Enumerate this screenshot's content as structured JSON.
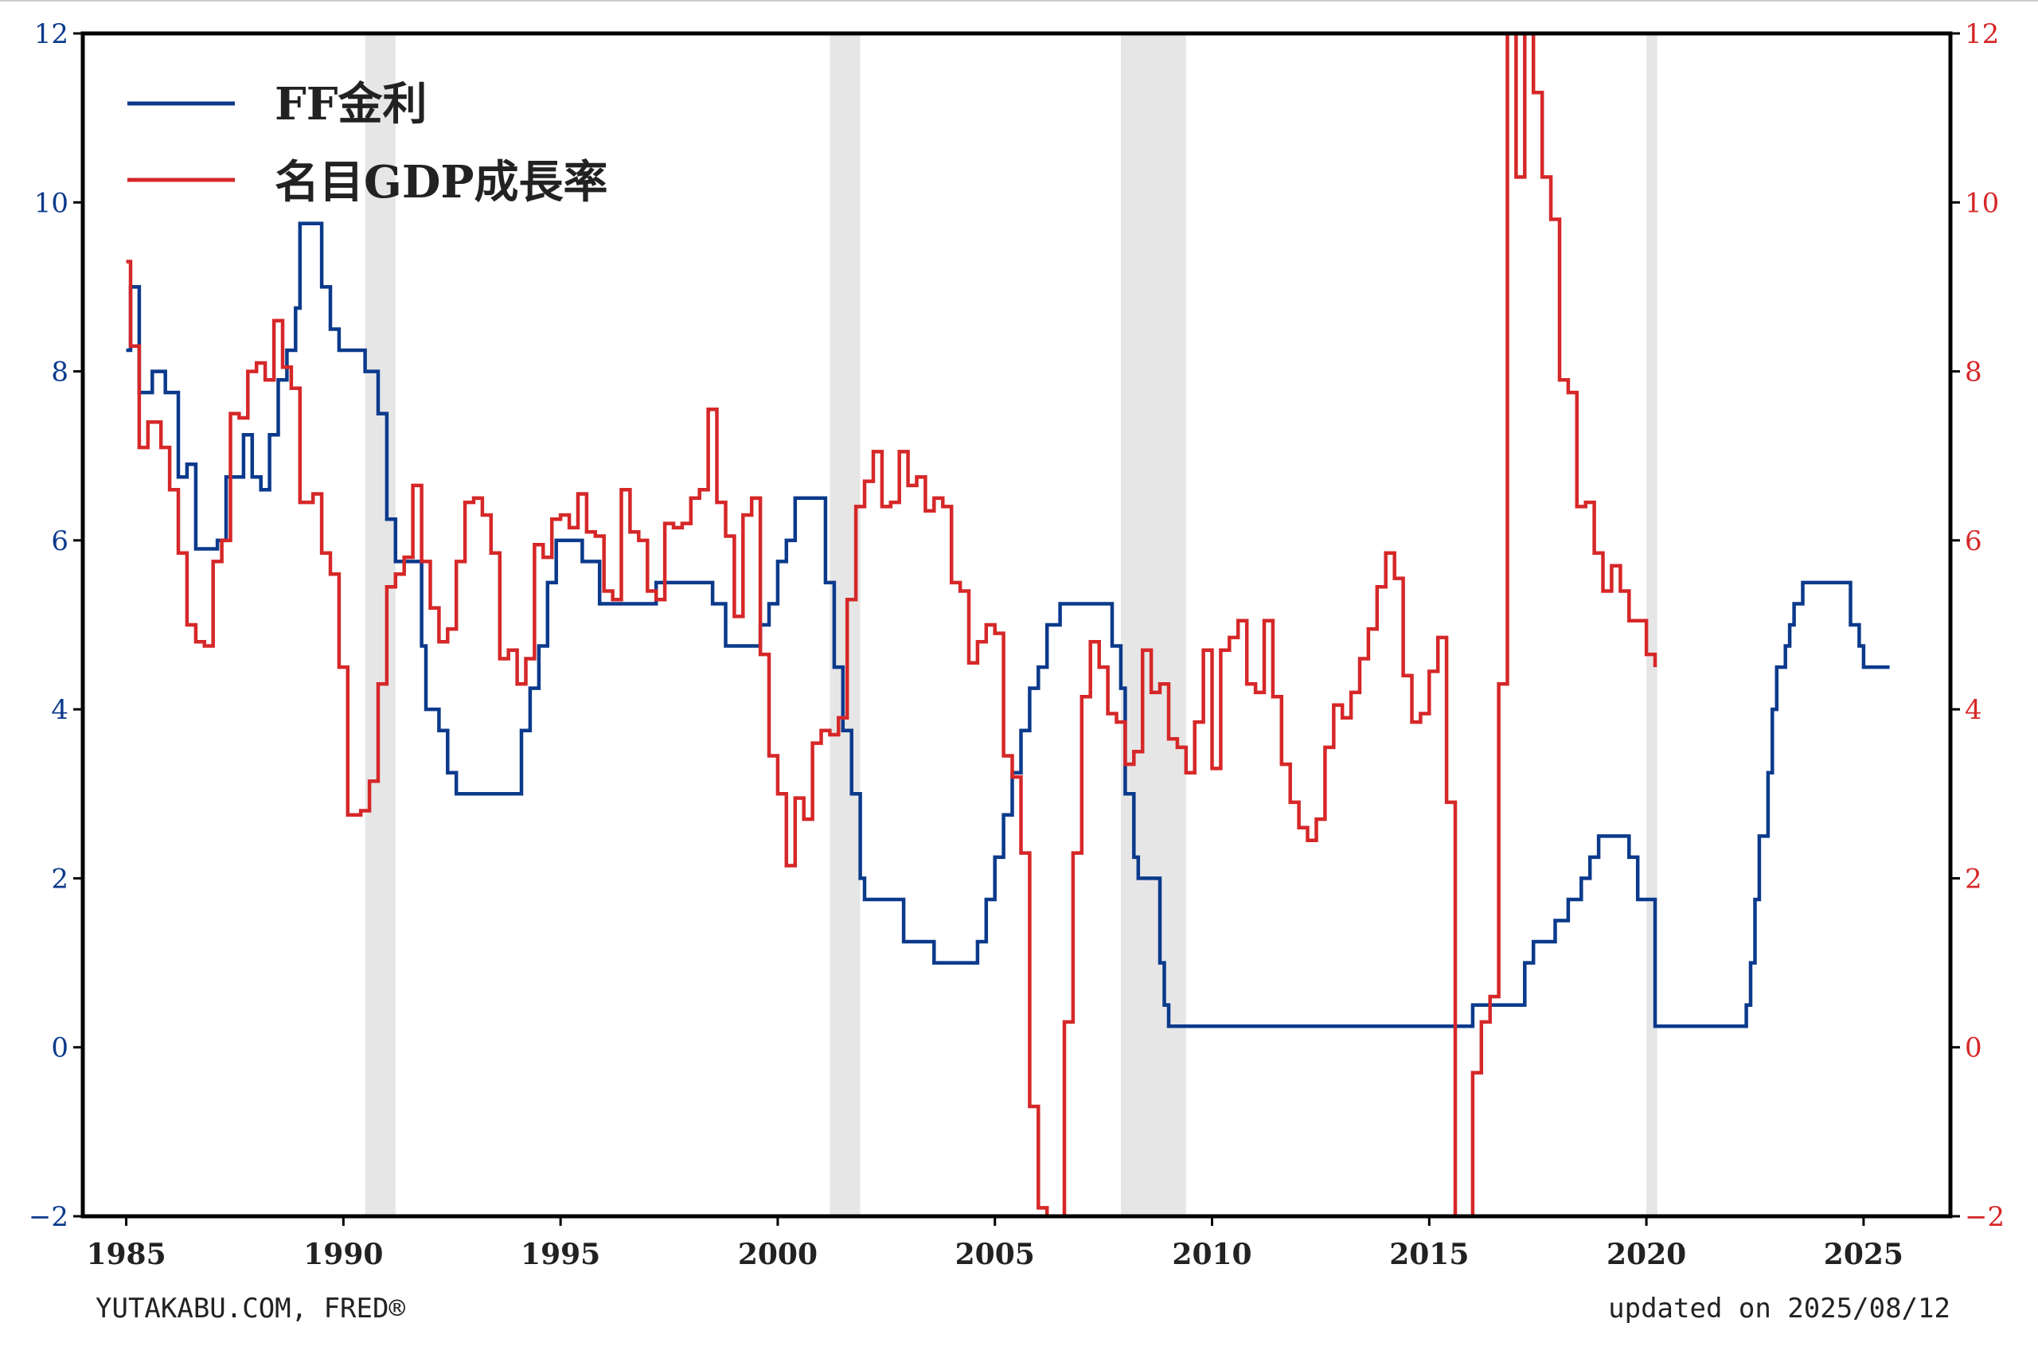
{
  "chart_data": {
    "type": "line",
    "x_range": [
      1984.0,
      2027.0
    ],
    "ylim_left": [
      -2,
      12
    ],
    "ylim_right": [
      -2,
      12
    ],
    "x_ticks": [
      "1985",
      "1990",
      "1995",
      "2000",
      "2005",
      "2010",
      "2015",
      "2020",
      "2025"
    ],
    "y_ticks_left": [
      "−2",
      "0",
      "2",
      "4",
      "6",
      "8",
      "10",
      "12"
    ],
    "y_ticks_right": [
      "−2",
      "0",
      "2",
      "4",
      "6",
      "8",
      "10",
      "12"
    ],
    "grid": false,
    "legend_position": "top-left",
    "recession_bands": [
      [
        1990.5,
        1991.2
      ],
      [
        2001.2,
        2001.9
      ],
      [
        2007.9,
        2009.4
      ],
      [
        2020.0,
        2020.25
      ]
    ],
    "colors": {
      "ff_rate": "#0b3a8c",
      "gdp_growth": "#d62728",
      "recession": "#e6e6e6"
    },
    "series": [
      {
        "name": "FF金利",
        "axis": "left",
        "points": [
          [
            1985.0,
            8.25
          ],
          [
            1985.1,
            9.0
          ],
          [
            1985.3,
            7.75
          ],
          [
            1985.6,
            8.0
          ],
          [
            1985.9,
            7.75
          ],
          [
            1986.2,
            6.75
          ],
          [
            1986.4,
            6.9
          ],
          [
            1986.6,
            5.9
          ],
          [
            1986.9,
            5.9
          ],
          [
            1987.1,
            6.0
          ],
          [
            1987.3,
            6.75
          ],
          [
            1987.6,
            6.75
          ],
          [
            1987.7,
            7.25
          ],
          [
            1987.9,
            6.75
          ],
          [
            1988.1,
            6.6
          ],
          [
            1988.3,
            7.25
          ],
          [
            1988.5,
            7.9
          ],
          [
            1988.7,
            8.25
          ],
          [
            1988.9,
            8.75
          ],
          [
            1989.0,
            9.75
          ],
          [
            1989.2,
            9.75
          ],
          [
            1989.5,
            9.0
          ],
          [
            1989.7,
            8.5
          ],
          [
            1989.9,
            8.25
          ],
          [
            1990.3,
            8.25
          ],
          [
            1990.5,
            8.0
          ],
          [
            1990.8,
            7.5
          ],
          [
            1991.0,
            6.25
          ],
          [
            1991.2,
            5.75
          ],
          [
            1991.5,
            5.75
          ],
          [
            1991.8,
            4.75
          ],
          [
            1991.9,
            4.0
          ],
          [
            1992.2,
            3.75
          ],
          [
            1992.4,
            3.25
          ],
          [
            1992.6,
            3.0
          ],
          [
            1993.2,
            3.0
          ],
          [
            1993.9,
            3.0
          ],
          [
            1994.1,
            3.75
          ],
          [
            1994.3,
            4.25
          ],
          [
            1994.5,
            4.75
          ],
          [
            1994.7,
            5.5
          ],
          [
            1994.9,
            6.0
          ],
          [
            1995.2,
            6.0
          ],
          [
            1995.5,
            5.75
          ],
          [
            1995.9,
            5.25
          ],
          [
            1996.5,
            5.25
          ],
          [
            1997.2,
            5.5
          ],
          [
            1997.8,
            5.5
          ],
          [
            1998.2,
            5.5
          ],
          [
            1998.5,
            5.25
          ],
          [
            1998.8,
            4.75
          ],
          [
            1999.4,
            4.75
          ],
          [
            1999.6,
            5.0
          ],
          [
            1999.8,
            5.25
          ],
          [
            2000.0,
            5.75
          ],
          [
            2000.2,
            6.0
          ],
          [
            2000.4,
            6.5
          ],
          [
            2000.9,
            6.5
          ],
          [
            2001.1,
            5.5
          ],
          [
            2001.3,
            4.5
          ],
          [
            2001.5,
            3.75
          ],
          [
            2001.7,
            3.0
          ],
          [
            2001.9,
            2.0
          ],
          [
            2002.0,
            1.75
          ],
          [
            2002.8,
            1.75
          ],
          [
            2002.9,
            1.25
          ],
          [
            2003.5,
            1.25
          ],
          [
            2003.6,
            1.0
          ],
          [
            2004.4,
            1.0
          ],
          [
            2004.6,
            1.25
          ],
          [
            2004.8,
            1.75
          ],
          [
            2005.0,
            2.25
          ],
          [
            2005.2,
            2.75
          ],
          [
            2005.4,
            3.25
          ],
          [
            2005.6,
            3.75
          ],
          [
            2005.8,
            4.25
          ],
          [
            2006.0,
            4.5
          ],
          [
            2006.2,
            5.0
          ],
          [
            2006.5,
            5.25
          ],
          [
            2007.5,
            5.25
          ],
          [
            2007.7,
            4.75
          ],
          [
            2007.9,
            4.25
          ],
          [
            2008.0,
            3.0
          ],
          [
            2008.2,
            2.25
          ],
          [
            2008.3,
            2.0
          ],
          [
            2008.7,
            2.0
          ],
          [
            2008.8,
            1.0
          ],
          [
            2008.9,
            0.5
          ],
          [
            2009.0,
            0.25
          ],
          [
            2015.9,
            0.25
          ],
          [
            2016.0,
            0.5
          ],
          [
            2016.9,
            0.5
          ],
          [
            2017.2,
            1.0
          ],
          [
            2017.4,
            1.25
          ],
          [
            2017.9,
            1.5
          ],
          [
            2018.2,
            1.75
          ],
          [
            2018.5,
            2.0
          ],
          [
            2018.7,
            2.25
          ],
          [
            2018.9,
            2.5
          ],
          [
            2019.4,
            2.5
          ],
          [
            2019.6,
            2.25
          ],
          [
            2019.8,
            1.75
          ],
          [
            2020.1,
            1.75
          ],
          [
            2020.2,
            0.25
          ],
          [
            2022.1,
            0.25
          ],
          [
            2022.3,
            0.5
          ],
          [
            2022.4,
            1.0
          ],
          [
            2022.5,
            1.75
          ],
          [
            2022.6,
            2.5
          ],
          [
            2022.8,
            3.25
          ],
          [
            2022.9,
            4.0
          ],
          [
            2023.0,
            4.5
          ],
          [
            2023.2,
            4.75
          ],
          [
            2023.3,
            5.0
          ],
          [
            2023.4,
            5.25
          ],
          [
            2023.6,
            5.5
          ],
          [
            2024.6,
            5.5
          ],
          [
            2024.7,
            5.0
          ],
          [
            2024.9,
            4.75
          ],
          [
            2025.0,
            4.5
          ],
          [
            2025.6,
            4.5
          ]
        ]
      },
      {
        "name": "名目GDP成長率",
        "axis": "right",
        "points": [
          [
            1985.0,
            9.3
          ],
          [
            1985.1,
            8.3
          ],
          [
            1985.3,
            7.1
          ],
          [
            1985.5,
            7.4
          ],
          [
            1985.8,
            7.1
          ],
          [
            1986.0,
            6.6
          ],
          [
            1986.2,
            5.85
          ],
          [
            1986.4,
            5.0
          ],
          [
            1986.6,
            4.8
          ],
          [
            1986.8,
            4.75
          ],
          [
            1987.0,
            5.75
          ],
          [
            1987.2,
            6.0
          ],
          [
            1987.4,
            7.5
          ],
          [
            1987.6,
            7.45
          ],
          [
            1987.8,
            8.0
          ],
          [
            1988.0,
            8.1
          ],
          [
            1988.2,
            7.9
          ],
          [
            1988.4,
            8.6
          ],
          [
            1988.6,
            8.05
          ],
          [
            1988.8,
            7.8
          ],
          [
            1989.0,
            6.45
          ],
          [
            1989.3,
            6.55
          ],
          [
            1989.5,
            5.85
          ],
          [
            1989.7,
            5.6
          ],
          [
            1989.9,
            4.5
          ],
          [
            1990.1,
            2.75
          ],
          [
            1990.4,
            2.8
          ],
          [
            1990.6,
            3.15
          ],
          [
            1990.8,
            4.3
          ],
          [
            1991.0,
            5.45
          ],
          [
            1991.2,
            5.6
          ],
          [
            1991.4,
            5.8
          ],
          [
            1991.6,
            6.65
          ],
          [
            1991.8,
            5.75
          ],
          [
            1992.0,
            5.2
          ],
          [
            1992.2,
            4.8
          ],
          [
            1992.4,
            4.95
          ],
          [
            1992.6,
            5.75
          ],
          [
            1992.8,
            6.45
          ],
          [
            1993.0,
            6.5
          ],
          [
            1993.2,
            6.3
          ],
          [
            1993.4,
            5.85
          ],
          [
            1993.6,
            4.6
          ],
          [
            1993.8,
            4.7
          ],
          [
            1994.0,
            4.3
          ],
          [
            1994.2,
            4.6
          ],
          [
            1994.4,
            5.95
          ],
          [
            1994.6,
            5.8
          ],
          [
            1994.8,
            6.25
          ],
          [
            1995.0,
            6.3
          ],
          [
            1995.2,
            6.15
          ],
          [
            1995.4,
            6.55
          ],
          [
            1995.6,
            6.1
          ],
          [
            1995.8,
            6.05
          ],
          [
            1996.0,
            5.4
          ],
          [
            1996.2,
            5.3
          ],
          [
            1996.4,
            6.6
          ],
          [
            1996.6,
            6.1
          ],
          [
            1996.8,
            6.0
          ],
          [
            1997.0,
            5.4
          ],
          [
            1997.2,
            5.3
          ],
          [
            1997.4,
            6.2
          ],
          [
            1997.6,
            6.15
          ],
          [
            1997.8,
            6.2
          ],
          [
            1998.0,
            6.5
          ],
          [
            1998.2,
            6.6
          ],
          [
            1998.4,
            7.55
          ],
          [
            1998.6,
            6.45
          ],
          [
            1998.8,
            6.05
          ],
          [
            1999.0,
            5.1
          ],
          [
            1999.2,
            6.3
          ],
          [
            1999.4,
            6.5
          ],
          [
            1999.6,
            4.65
          ],
          [
            1999.8,
            3.45
          ],
          [
            2000.0,
            3.0
          ],
          [
            2000.2,
            2.15
          ],
          [
            2000.4,
            2.95
          ],
          [
            2000.6,
            2.7
          ],
          [
            2000.8,
            3.6
          ],
          [
            2001.0,
            3.75
          ],
          [
            2001.2,
            3.7
          ],
          [
            2001.4,
            3.9
          ],
          [
            2001.6,
            5.3
          ],
          [
            2001.8,
            6.4
          ],
          [
            2002.0,
            6.7
          ],
          [
            2002.2,
            7.05
          ],
          [
            2002.4,
            6.4
          ],
          [
            2002.6,
            6.45
          ],
          [
            2002.8,
            7.05
          ],
          [
            2003.0,
            6.65
          ],
          [
            2003.2,
            6.75
          ],
          [
            2003.4,
            6.35
          ],
          [
            2003.6,
            6.5
          ],
          [
            2003.8,
            6.4
          ],
          [
            2004.0,
            5.5
          ],
          [
            2004.2,
            5.4
          ],
          [
            2004.4,
            4.55
          ],
          [
            2004.6,
            4.8
          ],
          [
            2004.8,
            5.0
          ],
          [
            2005.0,
            4.9
          ],
          [
            2005.2,
            3.45
          ],
          [
            2005.4,
            3.2
          ],
          [
            2005.6,
            2.3
          ],
          [
            2005.8,
            -0.7
          ],
          [
            2006.0,
            -1.9
          ],
          [
            2006.2,
            -2.0
          ],
          [
            2006.4,
            -2.0
          ],
          [
            2006.6,
            0.3
          ],
          [
            2006.8,
            2.3
          ],
          [
            2007.0,
            4.15
          ],
          [
            2007.2,
            4.8
          ],
          [
            2007.4,
            4.5
          ],
          [
            2007.6,
            3.95
          ],
          [
            2007.8,
            3.85
          ],
          [
            2008.0,
            3.35
          ],
          [
            2008.2,
            3.5
          ],
          [
            2008.4,
            4.7
          ],
          [
            2008.6,
            4.2
          ],
          [
            2008.8,
            4.3
          ],
          [
            2009.0,
            3.65
          ],
          [
            2009.2,
            3.55
          ],
          [
            2009.4,
            3.25
          ],
          [
            2009.6,
            3.85
          ],
          [
            2009.8,
            4.7
          ],
          [
            2010.0,
            3.3
          ],
          [
            2010.2,
            4.7
          ],
          [
            2010.4,
            4.85
          ],
          [
            2010.6,
            5.05
          ],
          [
            2010.8,
            4.3
          ],
          [
            2011.0,
            4.2
          ],
          [
            2011.2,
            5.05
          ],
          [
            2011.4,
            4.15
          ],
          [
            2011.6,
            3.35
          ],
          [
            2011.8,
            2.9
          ],
          [
            2012.0,
            2.6
          ],
          [
            2012.2,
            2.45
          ],
          [
            2012.4,
            2.7
          ],
          [
            2012.6,
            3.55
          ],
          [
            2012.8,
            4.05
          ],
          [
            2013.0,
            3.9
          ],
          [
            2013.2,
            4.2
          ],
          [
            2013.4,
            4.6
          ],
          [
            2013.6,
            4.95
          ],
          [
            2013.8,
            5.45
          ],
          [
            2014.0,
            5.85
          ],
          [
            2014.2,
            5.55
          ],
          [
            2014.4,
            4.4
          ],
          [
            2014.6,
            3.85
          ],
          [
            2014.8,
            3.95
          ],
          [
            2015.0,
            4.45
          ],
          [
            2015.2,
            4.85
          ],
          [
            2015.4,
            2.9
          ],
          [
            2015.6,
            -2.0
          ],
          [
            2015.8,
            -2.0
          ],
          [
            2016.0,
            -0.3
          ],
          [
            2016.2,
            0.3
          ],
          [
            2016.4,
            0.6
          ],
          [
            2016.6,
            4.3
          ],
          [
            2016.8,
            12.0
          ],
          [
            2017.0,
            10.3
          ],
          [
            2017.2,
            12.0
          ],
          [
            2017.4,
            11.3
          ],
          [
            2017.6,
            10.3
          ],
          [
            2017.8,
            9.8
          ],
          [
            2018.0,
            7.9
          ],
          [
            2018.2,
            7.75
          ],
          [
            2018.4,
            6.4
          ],
          [
            2018.6,
            6.45
          ],
          [
            2018.8,
            5.85
          ],
          [
            2019.0,
            5.4
          ],
          [
            2019.2,
            5.7
          ],
          [
            2019.4,
            5.4
          ],
          [
            2019.6,
            5.05
          ],
          [
            2019.8,
            5.05
          ],
          [
            2020.0,
            4.65
          ],
          [
            2020.2,
            4.5
          ]
        ]
      }
    ],
    "legend": [
      {
        "label": "FF金利",
        "series": 0
      },
      {
        "label": "名目GDP成長率",
        "series": 1
      }
    ]
  },
  "footer": {
    "source": "YUTAKABU.COM, FRED®",
    "updated": "updated on 2025/08/12"
  }
}
